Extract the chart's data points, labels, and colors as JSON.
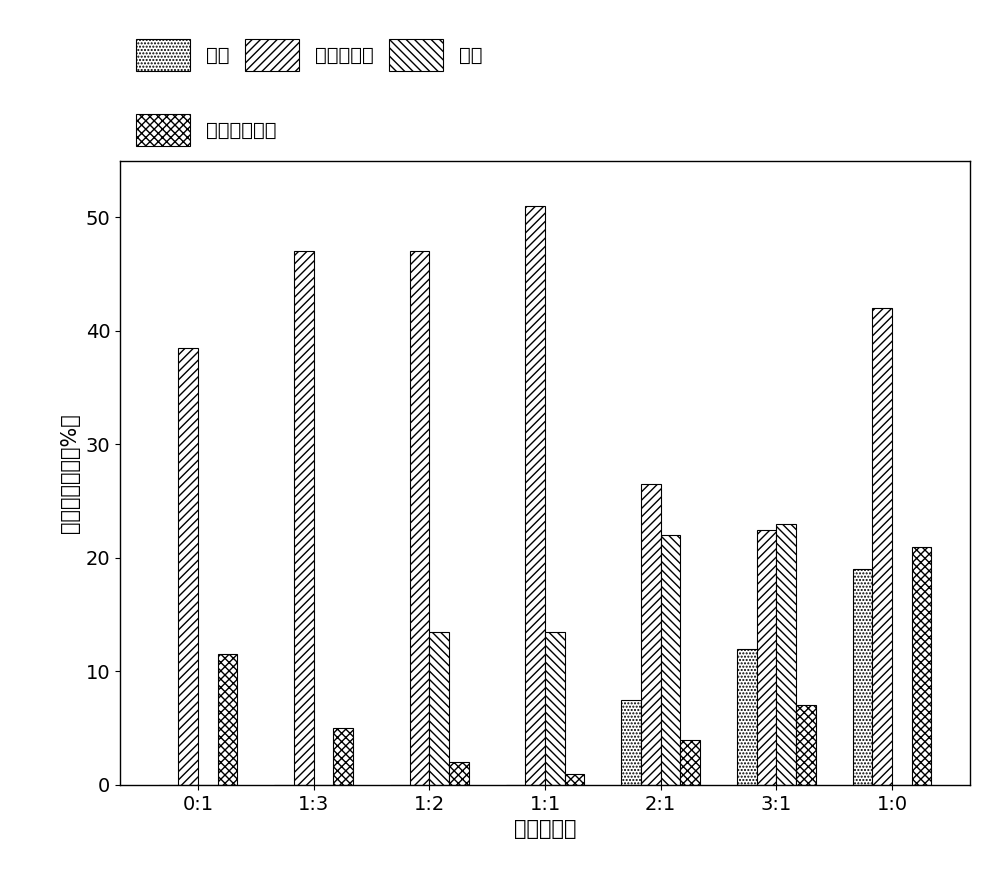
{
  "categories": [
    "0:1",
    "1:3",
    "1:2",
    "1:1",
    "2:1",
    "3:1",
    "1:0"
  ],
  "series": [
    {
      "name": "乙酸",
      "hatch": ".....",
      "values": [
        0,
        0,
        0,
        0,
        7.5,
        12,
        19
      ]
    },
    {
      "name": "长链脂肪酸",
      "hatch": "////",
      "values": [
        38.5,
        47,
        47,
        51,
        26.5,
        22.5,
        42
      ]
    },
    {
      "name": "酚类",
      "hatch": "\\\\\\\\",
      "values": [
        0,
        0,
        13.5,
        13.5,
        22,
        23,
        0
      ]
    },
    {
      "name": "其他含氧物质",
      "hatch": "xxxx",
      "values": [
        11.5,
        5,
        2,
        1,
        4,
        7,
        21
      ]
    }
  ],
  "xlabel": "竹子：微藻",
  "ylabel": "相对含量（面积%）",
  "ylim": [
    0,
    55
  ],
  "yticks": [
    0,
    10,
    20,
    30,
    40,
    50
  ],
  "bar_width": 0.17,
  "facecolor": "white",
  "edgecolor": "black",
  "label_fontsize": 15,
  "tick_fontsize": 14,
  "legend_fontsize": 14
}
